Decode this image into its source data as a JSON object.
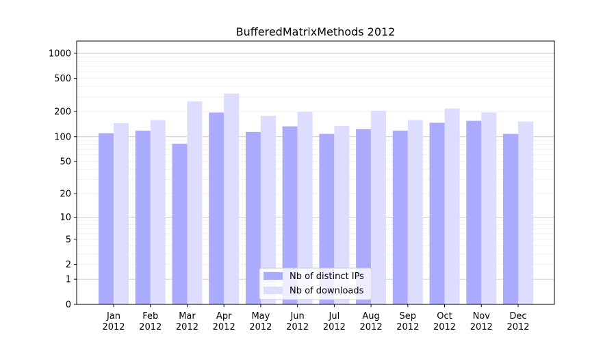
{
  "chart_data": {
    "type": "bar",
    "title": "BufferedMatrixMethods 2012",
    "xlabel": "",
    "ylabel": "",
    "y_scale": "log(1+y)",
    "ylim": [
      0,
      1400
    ],
    "y_ticks": [
      0,
      1,
      2,
      5,
      10,
      20,
      50,
      100,
      200,
      500,
      1000
    ],
    "grid": true,
    "legend_position": "bottom-center",
    "categories": [
      [
        "Jan",
        "2012"
      ],
      [
        "Feb",
        "2012"
      ],
      [
        "Mar",
        "2012"
      ],
      [
        "Apr",
        "2012"
      ],
      [
        "May",
        "2012"
      ],
      [
        "Jun",
        "2012"
      ],
      [
        "Jul",
        "2012"
      ],
      [
        "Aug",
        "2012"
      ],
      [
        "Sep",
        "2012"
      ],
      [
        "Oct",
        "2012"
      ],
      [
        "Nov",
        "2012"
      ],
      [
        "Dec",
        "2012"
      ]
    ],
    "series": [
      {
        "name": "Nb of distinct IPs",
        "color": "#aaaaff",
        "values": [
          110,
          118,
          82,
          195,
          114,
          133,
          108,
          123,
          118,
          147,
          155,
          108
        ]
      },
      {
        "name": "Nb of downloads",
        "color": "#ddddff",
        "values": [
          145,
          158,
          265,
          330,
          178,
          198,
          135,
          205,
          158,
          218,
          195,
          152
        ]
      }
    ]
  }
}
